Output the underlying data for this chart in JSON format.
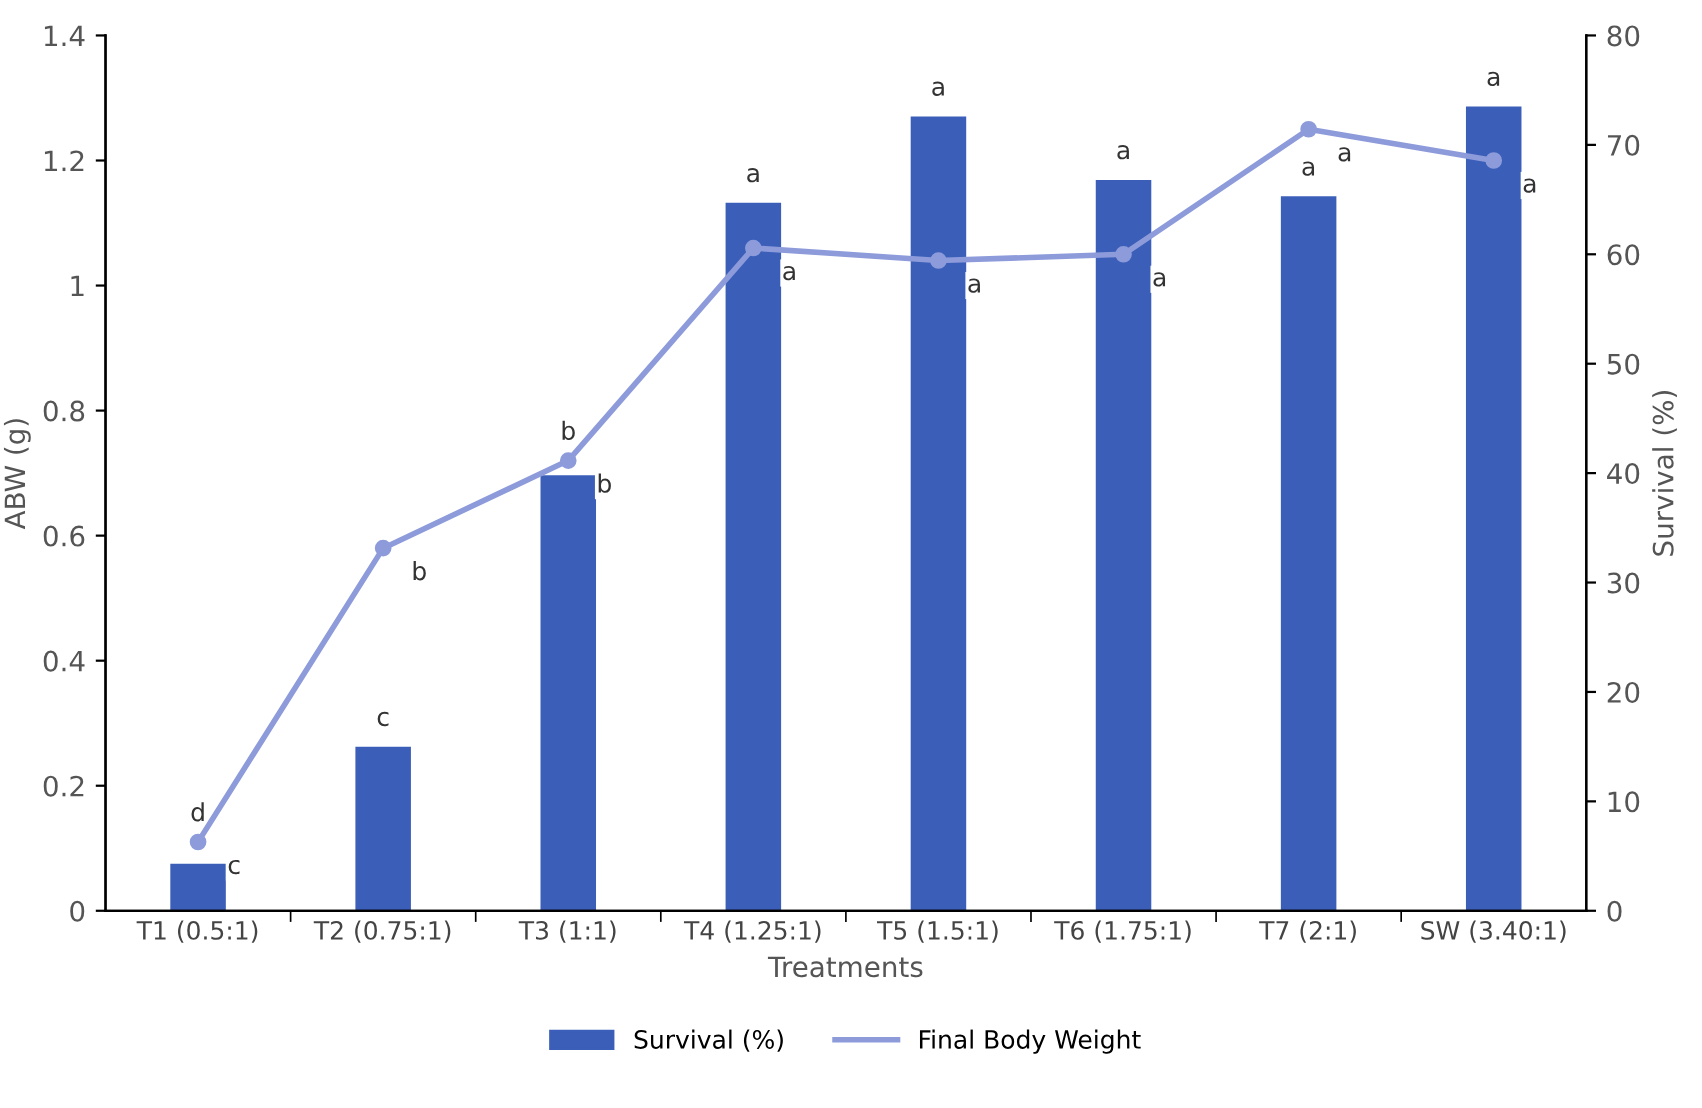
{
  "chart_data": {
    "type": "bar",
    "categories": [
      "T1 (0.5:1)",
      "T2 (0.75:1)",
      "T3 (1:1)",
      "T4 (1.25:1)",
      "T5 (1.5:1)",
      "T6 (1.75:1)",
      "T7 (2:1)",
      "SW (3.40:1)"
    ],
    "xlabel": "Treatments",
    "ylabel": "ABW (g)",
    "y2label": "Survival (%)",
    "series": [
      {
        "name": "Survival (%)",
        "axis": "y2",
        "color": "#3b5fb8",
        "values": [
          4.3,
          15.0,
          39.8,
          64.7,
          72.6,
          66.8,
          65.3,
          73.5
        ]
      },
      {
        "name": "Final Body Weight",
        "type": "line",
        "color": "#8d9bdb",
        "marker": "circle",
        "values": [
          0.11,
          0.58,
          0.72,
          1.06,
          1.04,
          1.05,
          1.25,
          1.2
        ]
      }
    ],
    "ylim": [
      0,
      1.4
    ],
    "yticks": [
      0,
      0.2,
      0.4,
      0.6,
      0.8,
      1,
      1.2,
      1.4
    ],
    "y2lim": [
      0,
      80
    ],
    "y2ticks": [
      0,
      10,
      20,
      30,
      40,
      50,
      60,
      70,
      80
    ],
    "grid": false,
    "legend": "bottom",
    "annotations": [
      "d",
      "c",
      "b",
      "a",
      "a",
      "a",
      "a",
      "a",
      {
        "text": "c",
        "x": "T1 (0.5:1)",
        "y": 0.11
      },
      {
        "text": "b",
        "x": "T2 (0.75:1)",
        "y": 0.58
      },
      {
        "text": "b",
        "x": "T3 (1:1)",
        "y": 0.72
      },
      {
        "text": "a",
        "x": "T4 (1.25:1)",
        "y": 1.06
      },
      {
        "text": "a",
        "x": "T5 (1.5:1)",
        "y": 1.04
      },
      {
        "text": "a",
        "x": "T6 (1.75:1)",
        "y": 1.05
      },
      {
        "text": "a",
        "x": "T7 (2:1)",
        "y": 1.25
      },
      {
        "text": "a",
        "x": "SW (3.40:1)",
        "y": 1.2
      }
    ]
  }
}
